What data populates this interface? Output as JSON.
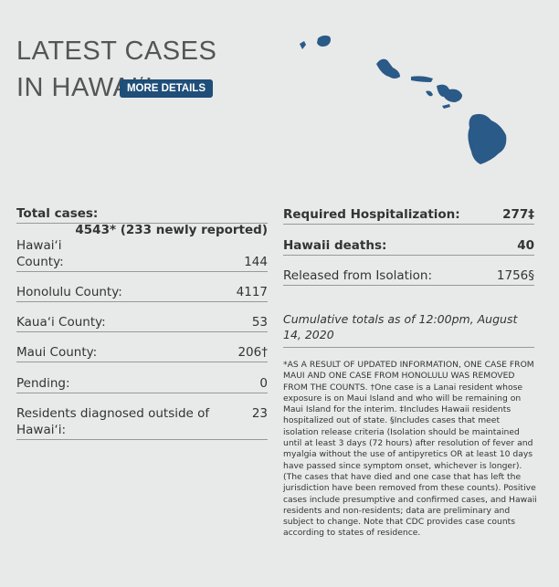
{
  "header": {
    "title": "LATEST CASES IN HAWAIʻI",
    "button": "MORE DETAILS"
  },
  "left": {
    "total": {
      "label": "Total cases:",
      "value": "4543* (233 newly reported)"
    },
    "rows": [
      {
        "label": "Hawaiʻi County:",
        "value": "144"
      },
      {
        "label": "Honolulu County:",
        "value": "4117"
      },
      {
        "label": "Kauaʻi County:",
        "value": "53"
      },
      {
        "label": "Maui County:",
        "value": "206†"
      },
      {
        "label": "Pending:",
        "value": "0"
      },
      {
        "label": "Residents diagnosed outside of Hawaiʻi:",
        "value": "23"
      }
    ]
  },
  "right": {
    "rows": [
      {
        "label": "Required Hospitalization:",
        "value": "277‡"
      },
      {
        "label": "Hawaii deaths:",
        "value": "40"
      },
      {
        "label": "Released from Isolation:",
        "value": "1756§"
      }
    ],
    "note": "Cumulative totals as of 12:00pm, August 14, 2020",
    "fine_print": "*AS A RESULT OF UPDATED INFORMATION, ONE CASE FROM MAUI AND ONE CASE FROM HONOLULU WAS REMOVED FROM THE COUNTS. †One case is a Lanai resident whose exposure is on Maui Island and who will be remaining on Maui Island for the interim. ‡Includes Hawaii residents hospitalized out of state. §Includes cases that meet isolation release criteria (Isolation should be maintained until at least 3 days (72 hours) after resolution of fever and myalgia without the use of antipyretics OR at least 10 days have passed since symptom onset, whichever is longer). (The cases that have died and one case that has left the jurisdiction have been removed from these counts). Positive cases include presumptive and confirmed cases, and Hawaii residents and non-residents; data are preliminary and subject to change. Note that CDC provides case counts according to states of residence."
  }
}
